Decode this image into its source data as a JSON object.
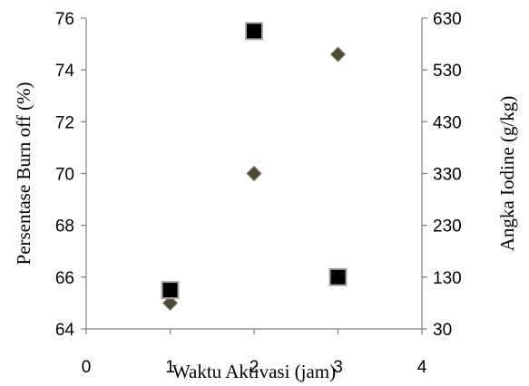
{
  "chart_data": {
    "type": "scatter",
    "title": "",
    "xlabel": "Waktu Aktivasi (jam)",
    "ylabel": "Persentase Burn off (%)",
    "y2label": "Angka Iodine (g/kg)",
    "xlim": [
      0,
      4
    ],
    "ylim": [
      64,
      76
    ],
    "y2lim": [
      30,
      630
    ],
    "x_ticks": [
      "0",
      "1",
      "2",
      "3",
      "4"
    ],
    "y_ticks": [
      "64",
      "66",
      "68",
      "70",
      "72",
      "74",
      "76"
    ],
    "y2_ticks": [
      "30",
      "130",
      "230",
      "330",
      "430",
      "530",
      "630"
    ],
    "grid": false,
    "legend": "none",
    "series": [
      {
        "axis": "left",
        "marker": "diamond",
        "color": "#4d4a36",
        "x": [
          1,
          2,
          3
        ],
        "values": [
          65.0,
          70.0,
          74.6
        ]
      },
      {
        "axis": "right",
        "marker": "square",
        "color": "#000000",
        "x": [
          1,
          2,
          3
        ],
        "values": [
          105,
          605,
          130
        ]
      }
    ]
  }
}
